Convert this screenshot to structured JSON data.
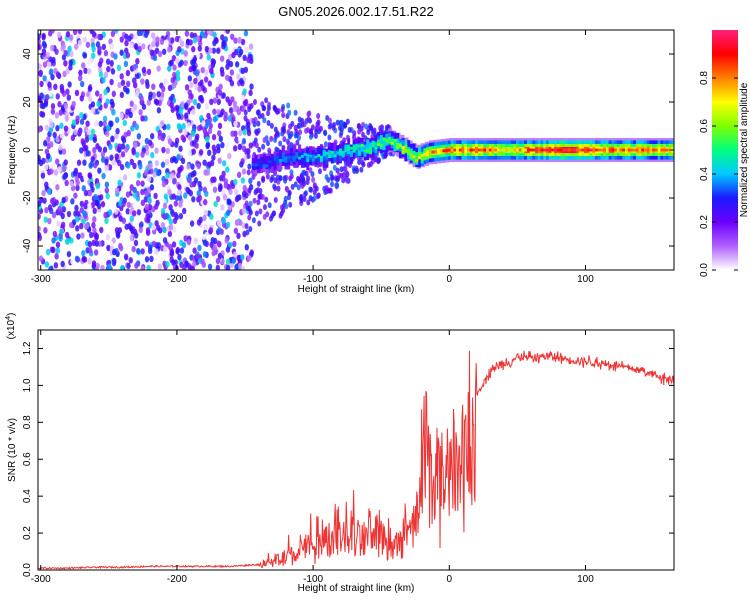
{
  "title": "GN05.2026.002.17.51.R22",
  "chart_data": [
    {
      "type": "heatmap",
      "name": "spectrogram",
      "xlabel": "Height of straight line (km)",
      "ylabel": "Frequency (Hz)",
      "xlim": [
        -302,
        165
      ],
      "ylim": [
        -50,
        50
      ],
      "x_ticks": [
        {
          "value": -300,
          "label": "-300"
        },
        {
          "value": -200,
          "label": "-200"
        },
        {
          "value": -100,
          "label": "-100"
        },
        {
          "value": 0,
          "label": "0"
        },
        {
          "value": 100,
          "label": "100"
        }
      ],
      "y_ticks": [
        {
          "value": -40,
          "label": "-40"
        },
        {
          "value": -20,
          "label": "-20"
        },
        {
          "value": 0,
          "label": "0"
        },
        {
          "value": 20,
          "label": "20"
        },
        {
          "value": 40,
          "label": "40"
        }
      ],
      "colorbar": {
        "label": "Normalized spectral amplitude",
        "range": [
          0,
          1
        ],
        "ticks": [
          {
            "value": 0.0,
            "label": "0.0"
          },
          {
            "value": 0.2,
            "label": "0.2"
          },
          {
            "value": 0.4,
            "label": "0.4"
          },
          {
            "value": 0.6,
            "label": "0.6"
          },
          {
            "value": 0.8,
            "label": "0.8"
          }
        ],
        "colormap": [
          "#ffffff",
          "#b060ff",
          "#6a00ff",
          "#1a1aff",
          "#00c8ff",
          "#00ff7f",
          "#80ff00",
          "#ffff00",
          "#ff8000",
          "#ff0000",
          "#ff2080"
        ]
      },
      "ridge": {
        "x": [
          -140,
          -120,
          -100,
          -80,
          -60,
          -45,
          -35,
          -25,
          -15,
          0,
          20,
          40,
          60,
          80,
          100,
          120,
          140,
          165
        ],
        "freq": [
          -6,
          -3,
          -3,
          -1,
          1,
          4,
          1,
          -3,
          -1,
          0,
          0,
          0,
          0,
          0,
          0,
          0,
          0,
          0
        ],
        "amplitude": [
          0.3,
          0.35,
          0.4,
          0.45,
          0.5,
          0.55,
          0.6,
          0.65,
          0.75,
          0.8,
          0.85,
          0.7,
          0.85,
          0.95,
          0.9,
          0.8,
          0.8,
          0.75
        ]
      },
      "noise_region": {
        "x_range": [
          -302,
          -145
        ],
        "freq_range": [
          -50,
          50
        ]
      }
    },
    {
      "type": "line",
      "name": "snr",
      "xlabel": "Height of straight line (km)",
      "ylabel": "SNR (10 * v/v)",
      "y_multiplier_base": "(x10",
      "y_multiplier_exp": "4",
      "y_multiplier_close": ")",
      "color": "#ee3333",
      "xlim": [
        -302,
        165
      ],
      "ylim": [
        0,
        1.3
      ],
      "x_ticks": [
        {
          "value": -300,
          "label": "-300"
        },
        {
          "value": -200,
          "label": "-200"
        },
        {
          "value": -100,
          "label": "-100"
        },
        {
          "value": 0,
          "label": "0"
        },
        {
          "value": 100,
          "label": "100"
        }
      ],
      "y_ticks": [
        {
          "value": 0.0,
          "label": "0.0"
        },
        {
          "value": 0.2,
          "label": "0.2"
        },
        {
          "value": 0.4,
          "label": "0.4"
        },
        {
          "value": 0.6,
          "label": "0.6"
        },
        {
          "value": 0.8,
          "label": "0.8"
        },
        {
          "value": 1.0,
          "label": "1.0"
        },
        {
          "value": 1.2,
          "label": "1.2"
        }
      ],
      "series": [
        {
          "x": [
            -302,
            -280,
            -260,
            -240,
            -220,
            -200,
            -180,
            -160,
            -140,
            -130,
            -120,
            -110,
            -100,
            -90,
            -80,
            -70,
            -60,
            -50,
            -40,
            -30,
            -25,
            -20,
            -17,
            -15,
            -12,
            -10,
            -5,
            0,
            5,
            10,
            15,
            20,
            25,
            30,
            40,
            50,
            60,
            70,
            80,
            90,
            100,
            110,
            120,
            130,
            140,
            150,
            160,
            165
          ],
          "y": [
            0.01,
            0.01,
            0.015,
            0.015,
            0.02,
            0.02,
            0.02,
            0.02,
            0.03,
            0.05,
            0.08,
            0.12,
            0.15,
            0.18,
            0.2,
            0.22,
            0.2,
            0.22,
            0.18,
            0.22,
            0.3,
            0.55,
            1.0,
            0.75,
            0.55,
            0.6,
            0.6,
            0.65,
            0.72,
            0.8,
            0.88,
            0.95,
            1.02,
            1.08,
            1.12,
            1.15,
            1.15,
            1.16,
            1.15,
            1.14,
            1.13,
            1.12,
            1.11,
            1.1,
            1.08,
            1.06,
            1.04,
            1.03
          ]
        }
      ]
    }
  ]
}
